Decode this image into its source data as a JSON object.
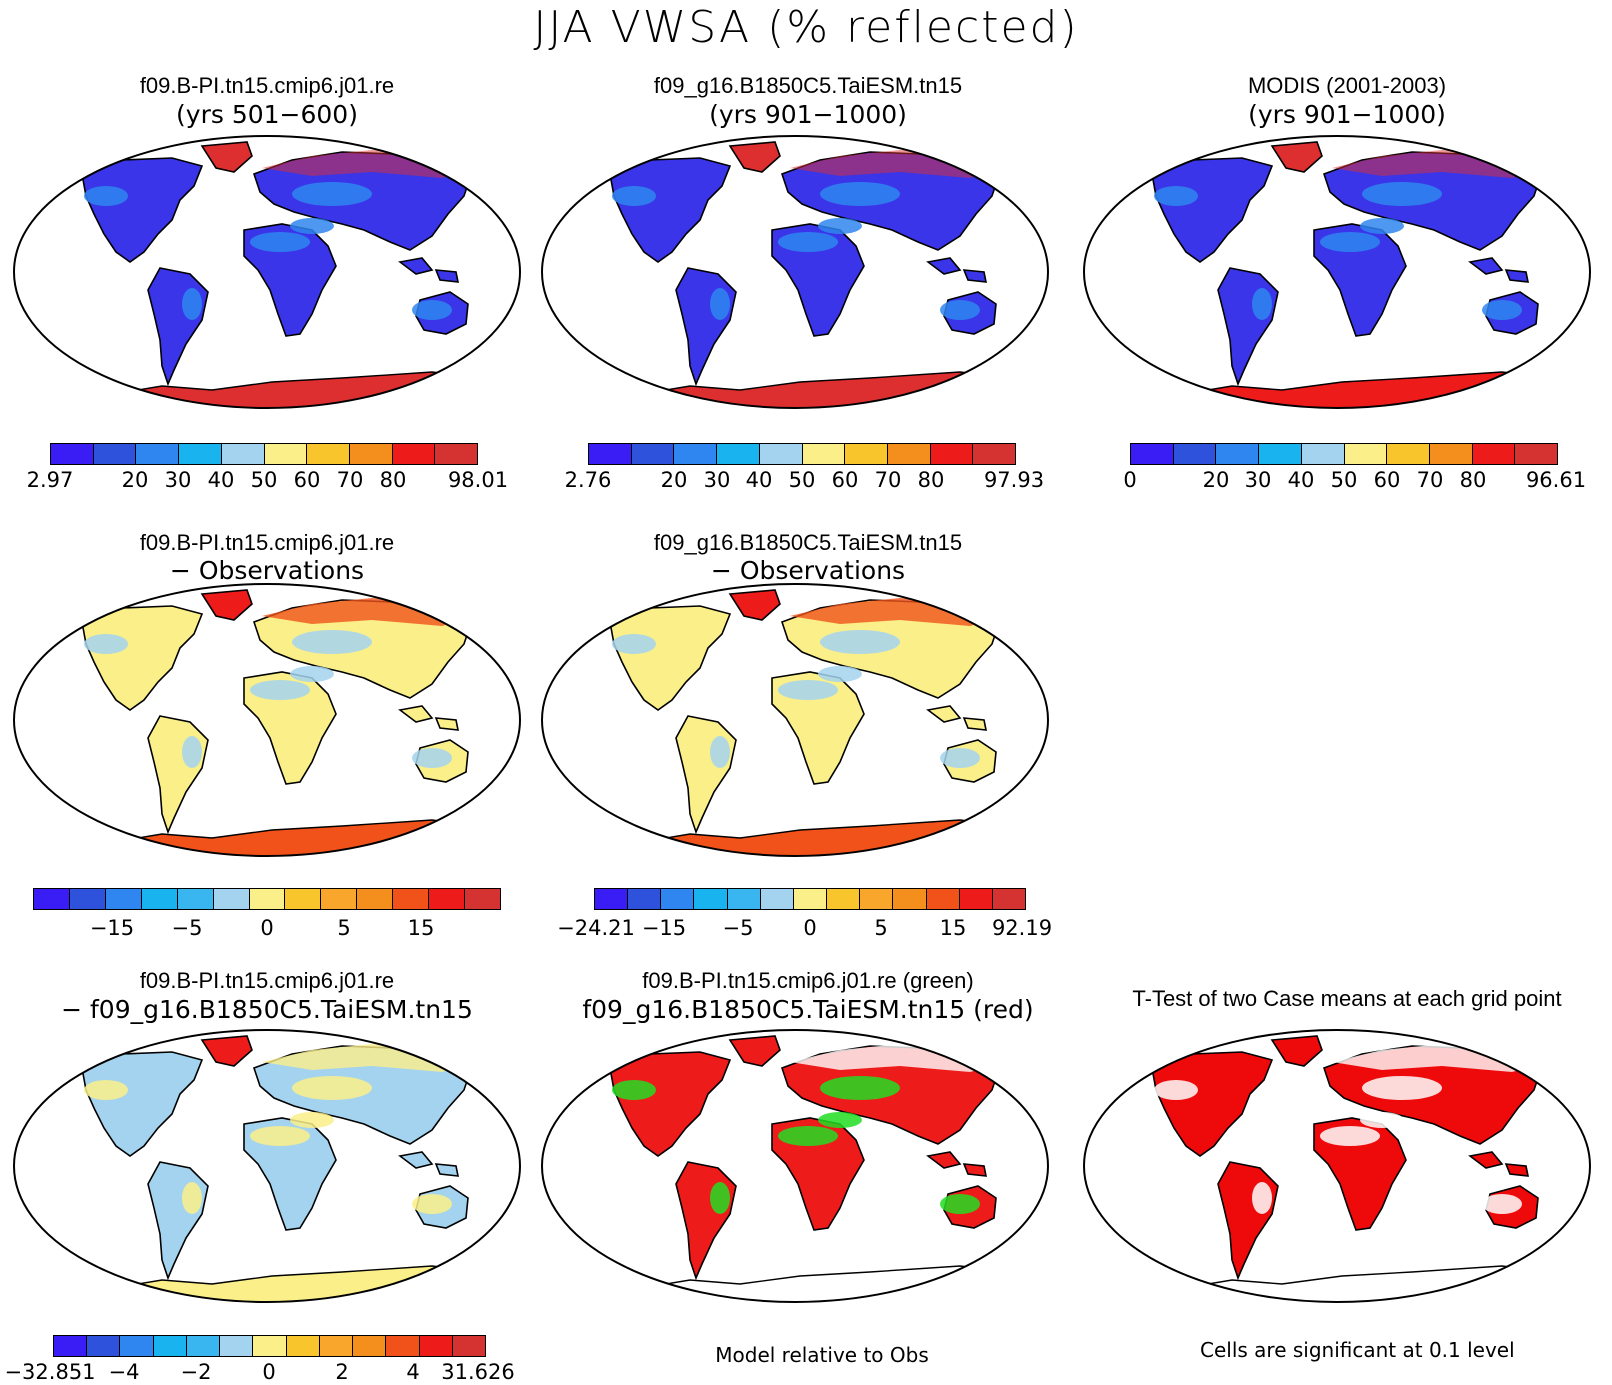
{
  "title": "JJA VWSA (% reflected)",
  "panels": [
    {
      "title": "f09.B-PI.tn15.cmip6.j01.re",
      "subtitle": "(yrs 501−600)",
      "mode": "abs",
      "antarctic": "#dd2f2f"
    },
    {
      "title": "f09_g16.B1850C5.TaiESM.tn15",
      "subtitle": "(yrs 901−1000)",
      "mode": "abs",
      "antarctic": "#dd2f2f"
    },
    {
      "title": "MODIS (2001-2003)",
      "subtitle": "(yrs 901−1000)",
      "mode": "abs",
      "antarctic": "#ee1b1b"
    },
    {
      "title": "f09.B-PI.tn15.cmip6.j01.re",
      "subtitle": "− Observations",
      "mode": "diff",
      "antarctic": "#f0521a"
    },
    {
      "title": "f09_g16.B1850C5.TaiESM.tn15",
      "subtitle": "− Observations",
      "mode": "diff",
      "antarctic": "#f0521a"
    },
    {
      "title": "f09.B-PI.tn15.cmip6.j01.re",
      "subtitle": "− f09_g16.B1850C5.TaiESM.tn15",
      "mode": "diff2",
      "antarctic": "#fbef8a"
    },
    {
      "title": "f09.B-PI.tn15.cmip6.j01.re (green)",
      "subtitle": "f09_g16.B1850C5.TaiESM.tn15 (red)",
      "mode": "compare",
      "antarctic": "#ffffff"
    },
    {
      "title": "T-Test of two Case means at each grid point",
      "subtitle": "",
      "mode": "ttest",
      "antarctic": "#ffffff"
    }
  ],
  "colorbars": [
    {
      "colors": [
        "#3a1cf5",
        "#2f52dd",
        "#2f86f0",
        "#19b4f0",
        "#a3d3ee",
        "#fbef8a",
        "#f9c52c",
        "#f48f1e",
        "#ee1b1b",
        "#d53232"
      ],
      "labels": [
        "2.97",
        "20",
        "30",
        "40",
        "50",
        "60",
        "70",
        "80",
        "98.01"
      ]
    },
    {
      "colors": [
        "#3a1cf5",
        "#2f52dd",
        "#2f86f0",
        "#19b4f0",
        "#a3d3ee",
        "#fbef8a",
        "#f9c52c",
        "#f48f1e",
        "#ee1b1b",
        "#d53232"
      ],
      "labels": [
        "2.76",
        "20",
        "30",
        "40",
        "50",
        "60",
        "70",
        "80",
        "97.93"
      ]
    },
    {
      "colors": [
        "#3a1cf5",
        "#2f52dd",
        "#2f86f0",
        "#19b4f0",
        "#a3d3ee",
        "#fbef8a",
        "#f9c52c",
        "#f48f1e",
        "#ee1b1b",
        "#d53232"
      ],
      "labels": [
        "0",
        "20",
        "30",
        "40",
        "50",
        "60",
        "70",
        "80",
        "96.61"
      ]
    },
    {
      "colors": [
        "#3a1cf5",
        "#2f52dd",
        "#2f86f0",
        "#19b4f0",
        "#39b5f0",
        "#a3d3ee",
        "#fbef8a",
        "#f9c52c",
        "#f9a62c",
        "#f48f1e",
        "#f0521a",
        "#ee1b1b",
        "#d53232"
      ],
      "labels": [
        "−15",
        "−5",
        "0",
        "5",
        "15"
      ]
    },
    {
      "colors": [
        "#3a1cf5",
        "#2f52dd",
        "#2f86f0",
        "#19b4f0",
        "#39b5f0",
        "#a3d3ee",
        "#fbef8a",
        "#f9c52c",
        "#f9a62c",
        "#f48f1e",
        "#f0521a",
        "#ee1b1b",
        "#d53232"
      ],
      "labels": [
        "−24.21",
        "−15",
        "−5",
        "0",
        "5",
        "15",
        "92.19"
      ]
    },
    {
      "colors": [
        "#3a1cf5",
        "#2f52dd",
        "#2f86f0",
        "#19b4f0",
        "#39b5f0",
        "#a3d3ee",
        "#fbef8a",
        "#f9c52c",
        "#f9a62c",
        "#f48f1e",
        "#f0521a",
        "#ee1b1b",
        "#d53232"
      ],
      "labels": [
        "−32.851",
        "−4",
        "−2",
        "0",
        "2",
        "4",
        "31.626"
      ]
    }
  ],
  "footer": {
    "compare": "Model relative to Obs",
    "ttest": "Cells are significant at 0.1 level"
  }
}
